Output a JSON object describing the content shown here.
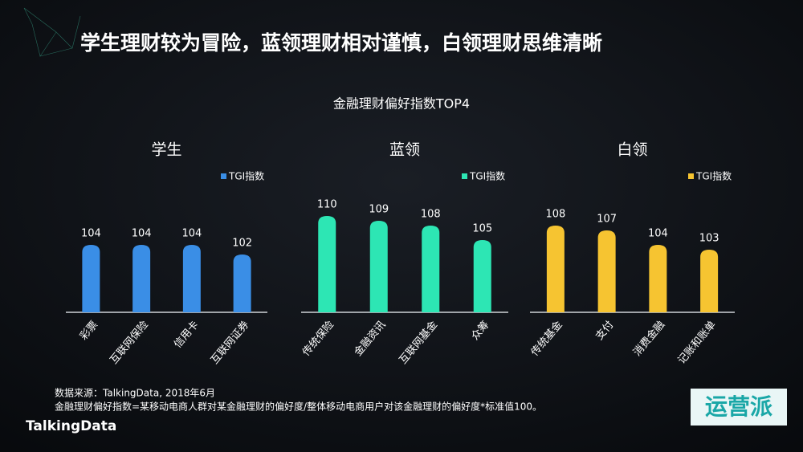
{
  "title": "学生理财较为冒险，蓝领理财相对谨慎，白领理财思维清晰",
  "subtitle": "金融理财偏好指数TOP4",
  "source": [
    "数据来源：TalkingData, 2018年6月",
    "金融理财偏好指数=某移动电商人群对某金融理财的偏好度/整体移动电商用户对该金融理财的偏好度*标准值100。"
  ],
  "logo": "TalkingData",
  "watermark": "运营派",
  "chart_data": [
    {
      "type": "bar",
      "title": "学生",
      "categories": [
        "彩票",
        "互联网保险",
        "信用卡",
        "互联网证券"
      ],
      "series": [
        {
          "name": "TGI指数",
          "color": "#3a8ee6",
          "values": [
            104,
            104,
            104,
            102
          ]
        }
      ],
      "ylim": [
        90,
        112
      ]
    },
    {
      "type": "bar",
      "title": "蓝领",
      "categories": [
        "传统保险",
        "金融资讯",
        "互联网基金",
        "众筹"
      ],
      "series": [
        {
          "name": "TGI指数",
          "color": "#2de6b4",
          "values": [
            110,
            109,
            108,
            105
          ]
        }
      ],
      "ylim": [
        90,
        112
      ]
    },
    {
      "type": "bar",
      "title": "白领",
      "categories": [
        "传统基金",
        "支付",
        "消费金融",
        "记账和账单"
      ],
      "series": [
        {
          "name": "TGI指数",
          "color": "#f6c431",
          "values": [
            108,
            107,
            104,
            103
          ]
        }
      ],
      "ylim": [
        90,
        112
      ]
    }
  ]
}
